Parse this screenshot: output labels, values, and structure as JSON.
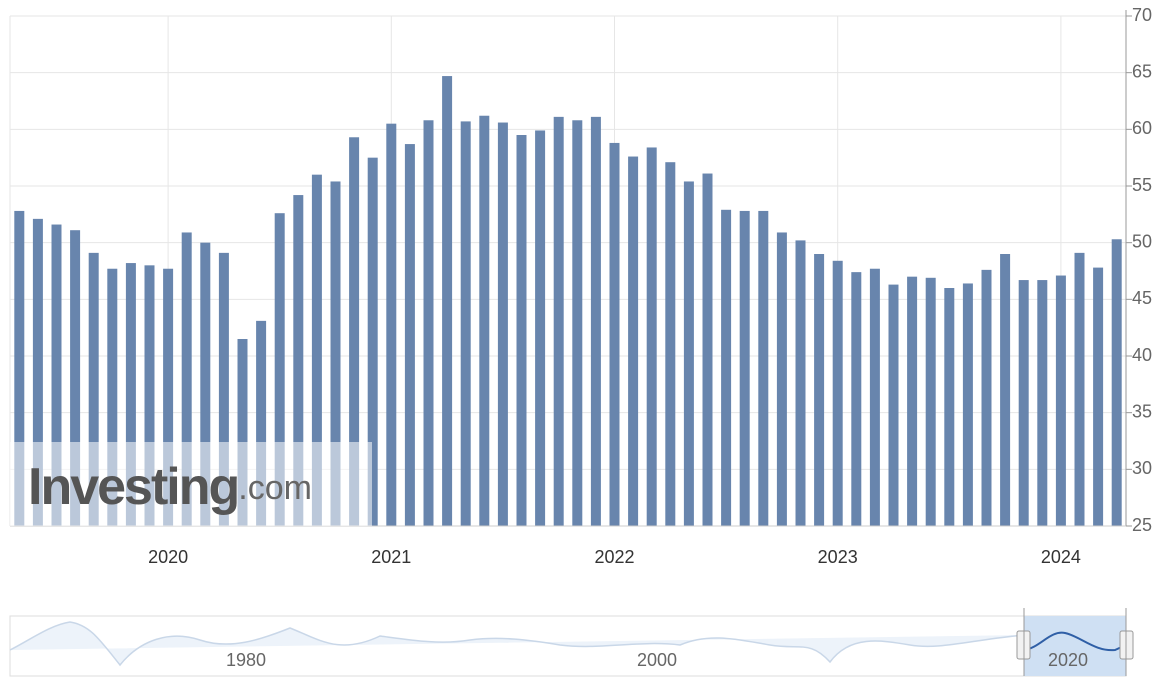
{
  "chart_data": {
    "type": "bar",
    "categories": [
      null,
      null,
      null,
      null,
      null,
      null,
      null,
      null,
      "2020",
      null,
      null,
      null,
      null,
      null,
      null,
      null,
      null,
      null,
      null,
      null,
      "2021",
      null,
      null,
      null,
      null,
      null,
      null,
      null,
      null,
      null,
      null,
      null,
      "2022",
      null,
      null,
      null,
      null,
      null,
      null,
      null,
      null,
      null,
      null,
      null,
      "2023",
      null,
      null,
      null,
      null,
      null,
      null,
      null,
      null,
      null,
      null,
      null,
      "2024",
      null,
      null,
      null
    ],
    "values": [
      52.8,
      52.1,
      51.6,
      51.1,
      49.1,
      47.7,
      48.2,
      48.0,
      47.7,
      50.9,
      50.0,
      49.1,
      41.5,
      43.1,
      52.6,
      54.2,
      56.0,
      55.4,
      59.3,
      57.5,
      60.5,
      58.7,
      60.8,
      64.7,
      60.7,
      61.2,
      60.6,
      59.5,
      59.9,
      61.1,
      60.8,
      61.1,
      58.8,
      57.6,
      58.4,
      57.1,
      55.4,
      56.1,
      52.9,
      52.8,
      52.8,
      50.9,
      50.2,
      49.0,
      48.4,
      47.4,
      47.7,
      46.3,
      47.0,
      46.9,
      46.0,
      46.4,
      47.6,
      49.0,
      46.7,
      46.7,
      47.1,
      49.1,
      47.8,
      50.3
    ],
    "color": "#6885ad",
    "ylim": [
      25,
      70
    ],
    "yticks": [
      25,
      30,
      35,
      40,
      45,
      50,
      55,
      60,
      65,
      70
    ],
    "grid": true,
    "watermark": {
      "brand": "Investing",
      "suffix": ".com"
    },
    "navigator": {
      "labels": [
        "1980",
        "2000",
        "2020"
      ]
    }
  }
}
